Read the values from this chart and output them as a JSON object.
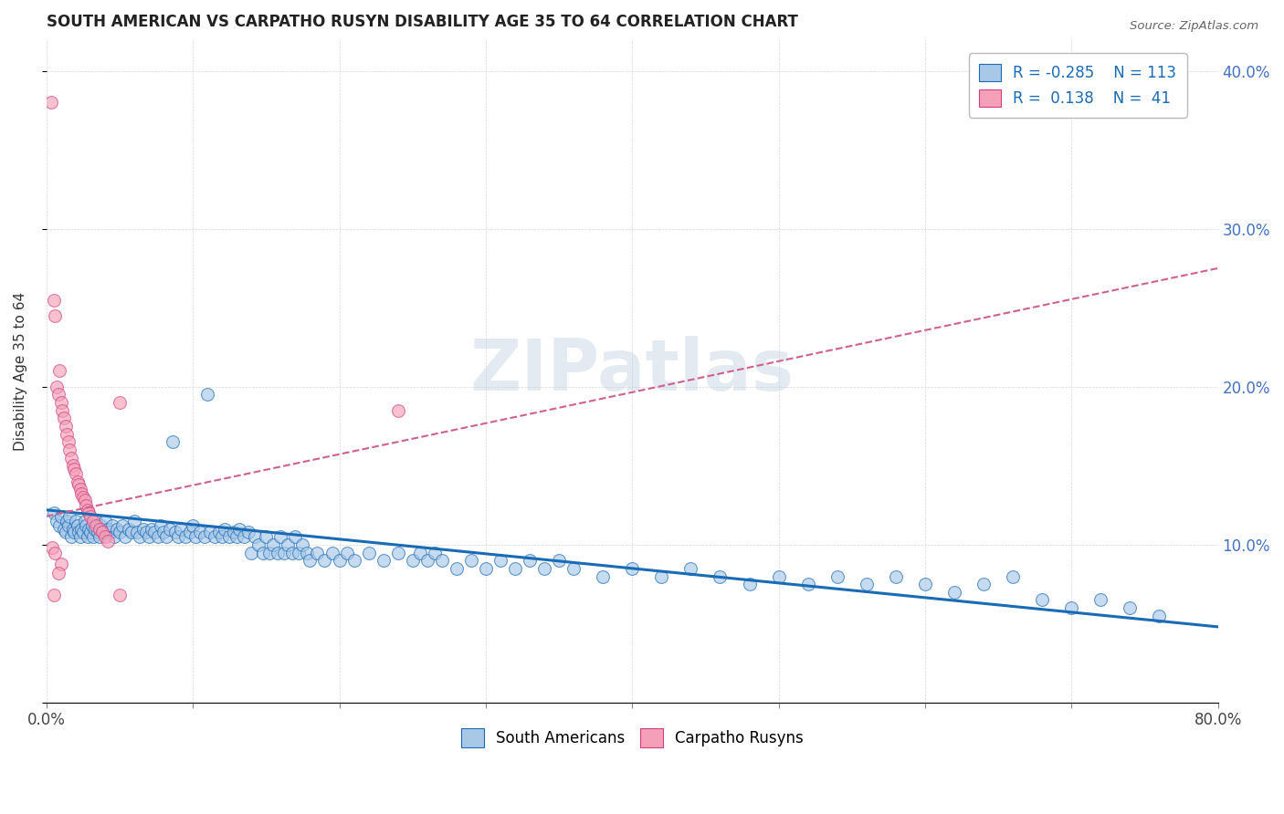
{
  "title": "SOUTH AMERICAN VS CARPATHO RUSYN DISABILITY AGE 35 TO 64 CORRELATION CHART",
  "source": "Source: ZipAtlas.com",
  "ylabel": "Disability Age 35 to 64",
  "xlim": [
    0.0,
    0.8
  ],
  "ylim": [
    0.0,
    0.42
  ],
  "xticks": [
    0.0,
    0.1,
    0.2,
    0.3,
    0.4,
    0.5,
    0.6,
    0.7,
    0.8
  ],
  "yticks": [
    0.0,
    0.1,
    0.2,
    0.3,
    0.4
  ],
  "blue_color": "#a8c8e8",
  "pink_color": "#f4a0b8",
  "blue_line_color": "#1a6bb5",
  "pink_line_color": "#d04080",
  "pink_dash_color": "#d06090",
  "watermark": "ZIPatlas",
  "blue_trend": [
    0.0,
    0.8,
    0.122,
    0.048
  ],
  "pink_trend": [
    0.0,
    0.8,
    0.118,
    0.275
  ],
  "blue_scatter": [
    [
      0.005,
      0.12
    ],
    [
      0.007,
      0.115
    ],
    [
      0.009,
      0.112
    ],
    [
      0.01,
      0.118
    ],
    [
      0.012,
      0.11
    ],
    [
      0.013,
      0.108
    ],
    [
      0.014,
      0.115
    ],
    [
      0.015,
      0.112
    ],
    [
      0.016,
      0.118
    ],
    [
      0.017,
      0.105
    ],
    [
      0.018,
      0.11
    ],
    [
      0.019,
      0.108
    ],
    [
      0.02,
      0.115
    ],
    [
      0.021,
      0.112
    ],
    [
      0.022,
      0.108
    ],
    [
      0.023,
      0.105
    ],
    [
      0.024,
      0.11
    ],
    [
      0.025,
      0.108
    ],
    [
      0.026,
      0.115
    ],
    [
      0.027,
      0.112
    ],
    [
      0.028,
      0.105
    ],
    [
      0.029,
      0.11
    ],
    [
      0.03,
      0.108
    ],
    [
      0.031,
      0.112
    ],
    [
      0.032,
      0.105
    ],
    [
      0.033,
      0.11
    ],
    [
      0.034,
      0.115
    ],
    [
      0.035,
      0.108
    ],
    [
      0.036,
      0.105
    ],
    [
      0.037,
      0.112
    ],
    [
      0.038,
      0.11
    ],
    [
      0.039,
      0.108
    ],
    [
      0.04,
      0.115
    ],
    [
      0.042,
      0.11
    ],
    [
      0.044,
      0.108
    ],
    [
      0.045,
      0.112
    ],
    [
      0.046,
      0.105
    ],
    [
      0.048,
      0.11
    ],
    [
      0.05,
      0.108
    ],
    [
      0.052,
      0.112
    ],
    [
      0.054,
      0.105
    ],
    [
      0.056,
      0.11
    ],
    [
      0.058,
      0.108
    ],
    [
      0.06,
      0.115
    ],
    [
      0.062,
      0.108
    ],
    [
      0.064,
      0.105
    ],
    [
      0.066,
      0.11
    ],
    [
      0.068,
      0.108
    ],
    [
      0.07,
      0.105
    ],
    [
      0.072,
      0.11
    ],
    [
      0.074,
      0.108
    ],
    [
      0.076,
      0.105
    ],
    [
      0.078,
      0.112
    ],
    [
      0.08,
      0.108
    ],
    [
      0.082,
      0.105
    ],
    [
      0.084,
      0.11
    ],
    [
      0.086,
      0.165
    ],
    [
      0.088,
      0.108
    ],
    [
      0.09,
      0.105
    ],
    [
      0.092,
      0.11
    ],
    [
      0.095,
      0.105
    ],
    [
      0.098,
      0.108
    ],
    [
      0.1,
      0.112
    ],
    [
      0.102,
      0.105
    ],
    [
      0.105,
      0.108
    ],
    [
      0.108,
      0.105
    ],
    [
      0.11,
      0.195
    ],
    [
      0.112,
      0.108
    ],
    [
      0.115,
      0.105
    ],
    [
      0.118,
      0.108
    ],
    [
      0.12,
      0.105
    ],
    [
      0.122,
      0.11
    ],
    [
      0.125,
      0.105
    ],
    [
      0.128,
      0.108
    ],
    [
      0.13,
      0.105
    ],
    [
      0.132,
      0.11
    ],
    [
      0.135,
      0.105
    ],
    [
      0.138,
      0.108
    ],
    [
      0.14,
      0.095
    ],
    [
      0.142,
      0.105
    ],
    [
      0.145,
      0.1
    ],
    [
      0.148,
      0.095
    ],
    [
      0.15,
      0.105
    ],
    [
      0.152,
      0.095
    ],
    [
      0.155,
      0.1
    ],
    [
      0.158,
      0.095
    ],
    [
      0.16,
      0.105
    ],
    [
      0.162,
      0.095
    ],
    [
      0.165,
      0.1
    ],
    [
      0.168,
      0.095
    ],
    [
      0.17,
      0.105
    ],
    [
      0.172,
      0.095
    ],
    [
      0.175,
      0.1
    ],
    [
      0.178,
      0.095
    ],
    [
      0.18,
      0.09
    ],
    [
      0.185,
      0.095
    ],
    [
      0.19,
      0.09
    ],
    [
      0.195,
      0.095
    ],
    [
      0.2,
      0.09
    ],
    [
      0.205,
      0.095
    ],
    [
      0.21,
      0.09
    ],
    [
      0.22,
      0.095
    ],
    [
      0.23,
      0.09
    ],
    [
      0.24,
      0.095
    ],
    [
      0.25,
      0.09
    ],
    [
      0.255,
      0.095
    ],
    [
      0.26,
      0.09
    ],
    [
      0.265,
      0.095
    ],
    [
      0.27,
      0.09
    ],
    [
      0.28,
      0.085
    ],
    [
      0.29,
      0.09
    ],
    [
      0.3,
      0.085
    ],
    [
      0.31,
      0.09
    ],
    [
      0.32,
      0.085
    ],
    [
      0.33,
      0.09
    ],
    [
      0.34,
      0.085
    ],
    [
      0.35,
      0.09
    ],
    [
      0.36,
      0.085
    ],
    [
      0.38,
      0.08
    ],
    [
      0.4,
      0.085
    ],
    [
      0.42,
      0.08
    ],
    [
      0.44,
      0.085
    ],
    [
      0.46,
      0.08
    ],
    [
      0.48,
      0.075
    ],
    [
      0.5,
      0.08
    ],
    [
      0.52,
      0.075
    ],
    [
      0.54,
      0.08
    ],
    [
      0.56,
      0.075
    ],
    [
      0.58,
      0.08
    ],
    [
      0.6,
      0.075
    ],
    [
      0.62,
      0.07
    ],
    [
      0.64,
      0.075
    ],
    [
      0.66,
      0.08
    ],
    [
      0.68,
      0.065
    ],
    [
      0.7,
      0.06
    ],
    [
      0.72,
      0.065
    ],
    [
      0.74,
      0.06
    ],
    [
      0.76,
      0.055
    ]
  ],
  "pink_scatter": [
    [
      0.003,
      0.38
    ],
    [
      0.005,
      0.255
    ],
    [
      0.006,
      0.245
    ],
    [
      0.007,
      0.2
    ],
    [
      0.008,
      0.195
    ],
    [
      0.009,
      0.21
    ],
    [
      0.01,
      0.19
    ],
    [
      0.011,
      0.185
    ],
    [
      0.012,
      0.18
    ],
    [
      0.013,
      0.175
    ],
    [
      0.014,
      0.17
    ],
    [
      0.015,
      0.165
    ],
    [
      0.016,
      0.16
    ],
    [
      0.017,
      0.155
    ],
    [
      0.018,
      0.15
    ],
    [
      0.019,
      0.148
    ],
    [
      0.02,
      0.145
    ],
    [
      0.021,
      0.14
    ],
    [
      0.022,
      0.138
    ],
    [
      0.023,
      0.135
    ],
    [
      0.024,
      0.132
    ],
    [
      0.025,
      0.13
    ],
    [
      0.026,
      0.128
    ],
    [
      0.027,
      0.125
    ],
    [
      0.028,
      0.122
    ],
    [
      0.029,
      0.12
    ],
    [
      0.03,
      0.118
    ],
    [
      0.032,
      0.115
    ],
    [
      0.034,
      0.112
    ],
    [
      0.036,
      0.11
    ],
    [
      0.038,
      0.108
    ],
    [
      0.04,
      0.105
    ],
    [
      0.042,
      0.102
    ],
    [
      0.004,
      0.098
    ],
    [
      0.006,
      0.095
    ],
    [
      0.05,
      0.19
    ],
    [
      0.24,
      0.185
    ],
    [
      0.01,
      0.088
    ],
    [
      0.008,
      0.082
    ],
    [
      0.005,
      0.068
    ],
    [
      0.05,
      0.068
    ]
  ]
}
